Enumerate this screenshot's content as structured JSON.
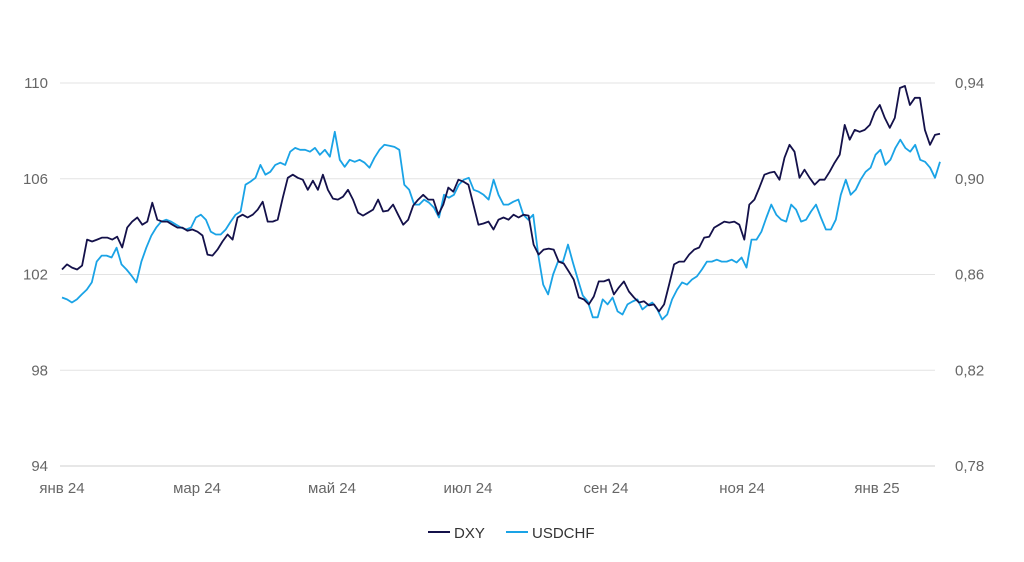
{
  "chart_data": {
    "type": "line",
    "title": "",
    "x_range": [
      "2024-01-02",
      "2025-01-31"
    ],
    "x_ticks": [
      "янв 24",
      "мар 24",
      "май 24",
      "июл 24",
      "сен 24",
      "ноя 24",
      "янв 25"
    ],
    "y_left": {
      "ticks": [
        "110",
        "106",
        "102",
        "98",
        "94"
      ],
      "range": [
        94,
        110
      ]
    },
    "y_right": {
      "ticks": [
        "0,94",
        "0,90",
        "0,86",
        "0,82",
        "0,78"
      ],
      "range": [
        0.78,
        0.94
      ]
    },
    "grid": true,
    "legend_position": "bottom-center",
    "series": [
      {
        "name": "DXY",
        "axis": "left",
        "color": "#14114a",
        "values": [
          102.21,
          102.42,
          102.29,
          102.21,
          102.37,
          103.46,
          103.38,
          103.46,
          103.54,
          103.54,
          103.46,
          103.58,
          103.13,
          103.96,
          104.21,
          104.38,
          104.08,
          104.21,
          105.0,
          104.29,
          104.21,
          104.21,
          104.08,
          103.96,
          103.96,
          103.83,
          103.88,
          103.79,
          103.63,
          102.83,
          102.79,
          103.04,
          103.38,
          103.67,
          103.46,
          104.38,
          104.5,
          104.38,
          104.5,
          104.71,
          105.04,
          104.21,
          104.21,
          104.29,
          105.21,
          106.04,
          106.17,
          106.04,
          105.96,
          105.54,
          105.92,
          105.54,
          106.17,
          105.54,
          105.17,
          105.13,
          105.25,
          105.54,
          105.13,
          104.58,
          104.46,
          104.58,
          104.71,
          105.13,
          104.63,
          104.67,
          104.92,
          104.5,
          104.08,
          104.29,
          104.88,
          105.13,
          105.33,
          105.13,
          105.13,
          104.5,
          104.92,
          105.63,
          105.46,
          105.96,
          105.88,
          105.75,
          104.92,
          104.08,
          104.13,
          104.21,
          103.88,
          104.29,
          104.38,
          104.29,
          104.5,
          104.38,
          104.5,
          104.46,
          103.25,
          102.83,
          103.04,
          103.08,
          103.04,
          102.54,
          102.46,
          102.13,
          101.79,
          101.04,
          100.96,
          100.75,
          101.08,
          101.71,
          101.71,
          101.79,
          101.17,
          101.46,
          101.71,
          101.29,
          101.04,
          100.83,
          100.88,
          100.71,
          100.75,
          100.46,
          100.75,
          101.58,
          102.42,
          102.54,
          102.54,
          102.83,
          103.04,
          103.13,
          103.54,
          103.58,
          103.96,
          104.08,
          104.21,
          104.17,
          104.21,
          104.08,
          103.46,
          104.92,
          105.13,
          105.63,
          106.17,
          106.25,
          106.29,
          105.96,
          106.88,
          107.42,
          107.13,
          106.04,
          106.38,
          106.04,
          105.75,
          105.96,
          105.96,
          106.29,
          106.67,
          107.0,
          108.25,
          107.63,
          108.04,
          107.96,
          108.04,
          108.25,
          108.79,
          109.08,
          108.54,
          108.13,
          108.54,
          109.79,
          109.88,
          109.08,
          109.38,
          109.38,
          108.04,
          107.42,
          107.83,
          107.88
        ]
      },
      {
        "name": "USDCHF",
        "axis": "right",
        "color": "#1aa3e6",
        "values": [
          0.8504,
          0.8496,
          0.8483,
          0.8496,
          0.8517,
          0.8537,
          0.8567,
          0.8654,
          0.8679,
          0.8679,
          0.8671,
          0.8712,
          0.8642,
          0.8621,
          0.8596,
          0.8567,
          0.8654,
          0.8712,
          0.8762,
          0.8796,
          0.8821,
          0.8829,
          0.8821,
          0.8808,
          0.8796,
          0.8788,
          0.8796,
          0.8838,
          0.885,
          0.8829,
          0.8779,
          0.8767,
          0.8767,
          0.8788,
          0.8821,
          0.885,
          0.8863,
          0.8975,
          0.8988,
          0.9004,
          0.9058,
          0.9017,
          0.9029,
          0.9058,
          0.9067,
          0.9058,
          0.9113,
          0.9129,
          0.9121,
          0.9121,
          0.9113,
          0.9129,
          0.91,
          0.9121,
          0.9092,
          0.9196,
          0.9079,
          0.905,
          0.9079,
          0.9071,
          0.9079,
          0.9067,
          0.9046,
          0.9088,
          0.9121,
          0.9142,
          0.9138,
          0.9133,
          0.9121,
          0.8975,
          0.8954,
          0.8892,
          0.8892,
          0.8913,
          0.89,
          0.8879,
          0.8838,
          0.8933,
          0.8921,
          0.8933,
          0.8975,
          0.8996,
          0.9004,
          0.8954,
          0.8946,
          0.8933,
          0.8913,
          0.8996,
          0.8933,
          0.8892,
          0.8892,
          0.8904,
          0.8913,
          0.885,
          0.8829,
          0.885,
          0.8683,
          0.8558,
          0.8517,
          0.86,
          0.8654,
          0.8654,
          0.8725,
          0.865,
          0.8579,
          0.8512,
          0.8487,
          0.8421,
          0.8421,
          0.8496,
          0.8475,
          0.8504,
          0.8446,
          0.8433,
          0.8475,
          0.8487,
          0.8496,
          0.8454,
          0.8471,
          0.8483,
          0.8454,
          0.8412,
          0.8433,
          0.8496,
          0.8537,
          0.8567,
          0.8558,
          0.8579,
          0.8592,
          0.8621,
          0.8654,
          0.8654,
          0.8662,
          0.8654,
          0.8654,
          0.8662,
          0.865,
          0.8671,
          0.8629,
          0.8746,
          0.8746,
          0.8779,
          0.8838,
          0.8892,
          0.885,
          0.8829,
          0.8821,
          0.8892,
          0.8871,
          0.8821,
          0.8829,
          0.8863,
          0.8892,
          0.8838,
          0.8788,
          0.8788,
          0.8829,
          0.8933,
          0.8996,
          0.8933,
          0.8954,
          0.8996,
          0.9029,
          0.9046,
          0.91,
          0.9121,
          0.9058,
          0.9079,
          0.9129,
          0.9163,
          0.9129,
          0.9113,
          0.9142,
          0.9079,
          0.9071,
          0.9046,
          0.9004,
          0.9071
        ]
      }
    ]
  }
}
